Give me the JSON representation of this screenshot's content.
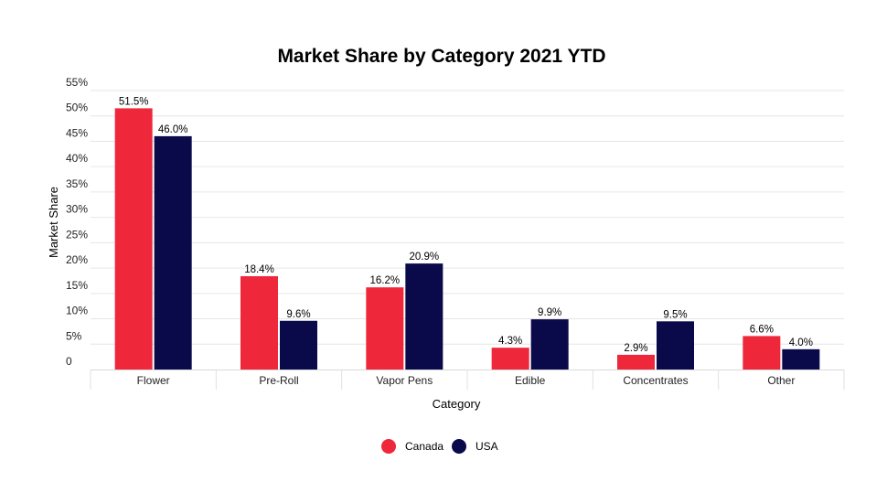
{
  "chart_data": {
    "type": "bar",
    "title": "Market Share by Category 2021 YTD",
    "xlabel": "Category",
    "ylabel": "Market Share",
    "categories": [
      "Flower",
      "Pre-Roll",
      "Vapor Pens",
      "Edible",
      "Concentrates",
      "Other"
    ],
    "series": [
      {
        "name": "Canada",
        "color": "#ee273a",
        "values": [
          51.5,
          18.4,
          16.2,
          4.3,
          2.9,
          6.6
        ],
        "labels": [
          "51.5%",
          "18.4%",
          "16.2%",
          "4.3%",
          "2.9%",
          "6.6%"
        ]
      },
      {
        "name": "USA",
        "color": "#0a0a4a",
        "values": [
          46.0,
          9.6,
          20.9,
          9.9,
          9.5,
          4.0
        ],
        "labels": [
          "46.0%",
          "9.6%",
          "20.9%",
          "9.9%",
          "9.5%",
          "4.0%"
        ]
      }
    ],
    "yticks": [
      "0",
      "5%",
      "10%",
      "15%",
      "20%",
      "25%",
      "30%",
      "35%",
      "40%",
      "45%",
      "50%",
      "55%"
    ],
    "ylim": [
      0,
      57
    ],
    "grid": true,
    "legend": "bottom-center"
  }
}
